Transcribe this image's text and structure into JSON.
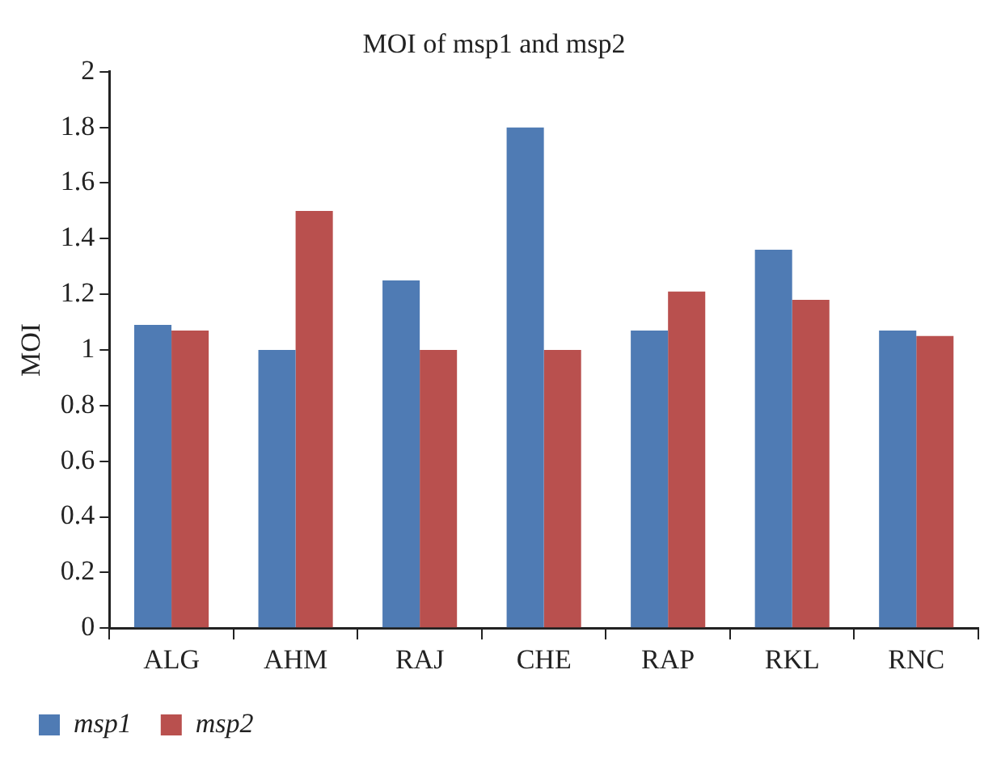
{
  "chart_data": {
    "type": "bar",
    "title": "MOI of msp1 and msp2",
    "ylabel": "MOI",
    "categories": [
      "ALG",
      "AHM",
      "RAJ",
      "CHE",
      "RAP",
      "RKL",
      "RNC"
    ],
    "series": [
      {
        "name": "msp1",
        "color": "#4f7bb4",
        "values": [
          1.09,
          1.0,
          1.25,
          1.8,
          1.07,
          1.36,
          1.07
        ]
      },
      {
        "name": "msp2",
        "color": "#b9504e",
        "values": [
          1.07,
          1.5,
          1.0,
          1.0,
          1.21,
          1.18,
          1.05
        ]
      }
    ],
    "ylim": [
      0,
      2
    ],
    "yticks": [
      0,
      0.2,
      0.4,
      0.6,
      0.8,
      1,
      1.2,
      1.4,
      1.6,
      1.8,
      2
    ],
    "grid": false,
    "legend": "bottom left"
  }
}
